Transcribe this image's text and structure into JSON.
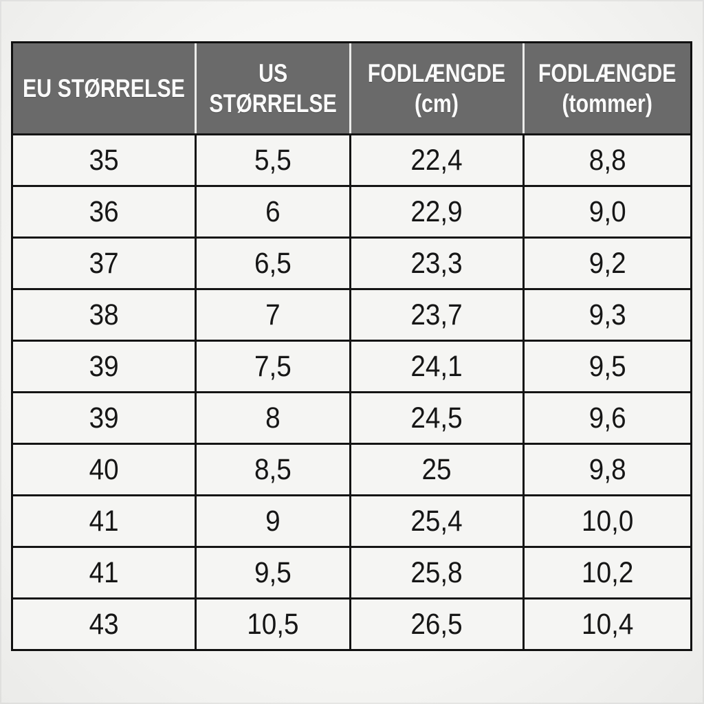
{
  "chart_data": {
    "type": "table",
    "title": "",
    "columns": [
      "EU STØRRELSE",
      "US STØRRELSE",
      "FODLÆNGDE (cm)",
      "FODLÆNGDE (tommer)"
    ],
    "rows": [
      [
        "35",
        "5,5",
        "22,4",
        "8,8"
      ],
      [
        "36",
        "6",
        "22,9",
        "9,0"
      ],
      [
        "37",
        "6,5",
        "23,3",
        "9,2"
      ],
      [
        "38",
        "7",
        "23,7",
        "9,3"
      ],
      [
        "39",
        "7,5",
        "24,1",
        "9,5"
      ],
      [
        "39",
        "8",
        "24,5",
        "9,6"
      ],
      [
        "40",
        "8,5",
        "25",
        "9,8"
      ],
      [
        "41",
        "9",
        "25,4",
        "10,0"
      ],
      [
        "41",
        "9,5",
        "25,8",
        "10,2"
      ],
      [
        "43",
        "10,5",
        "26,5",
        "10,4"
      ]
    ]
  },
  "colors": {
    "header_bg": "#6a6a6a",
    "header_text": "#fafafa",
    "cell_bg": "#f5f5f3",
    "border": "#141414",
    "page_bg": "#f2f2f0"
  }
}
